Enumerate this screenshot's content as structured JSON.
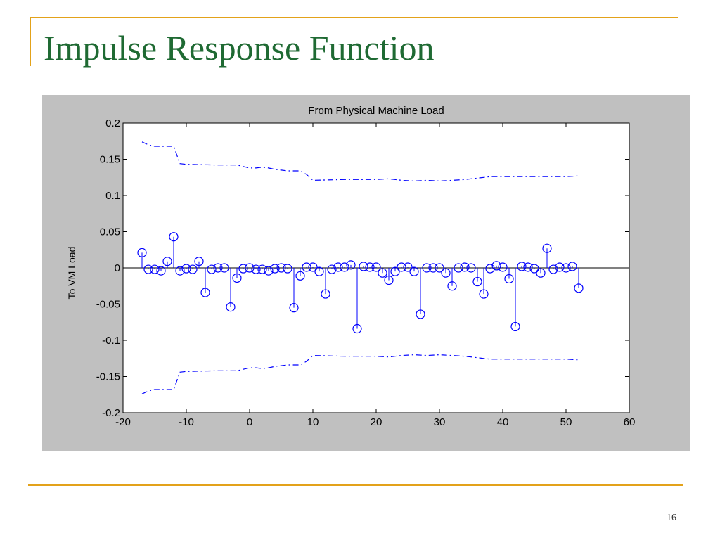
{
  "slide": {
    "title": "Impulse Response Function",
    "page_number": "16"
  },
  "colors": {
    "accent_rule": "#e3a21a",
    "title": "#1f6a33",
    "figure_background": "#c0c0c0",
    "series": "#0000ff"
  },
  "chart_data": {
    "type": "stem",
    "title": "From Physical Machine Load",
    "xlabel": "",
    "ylabel": "To VM Load",
    "xlim": [
      -20,
      60
    ],
    "ylim": [
      -0.2,
      0.2
    ],
    "xticks": [
      -20,
      -10,
      0,
      10,
      20,
      30,
      40,
      50,
      60
    ],
    "xtick_labels": [
      "-20",
      "-10",
      "0",
      "10",
      "20",
      "30",
      "40",
      "50",
      "60"
    ],
    "yticks": [
      0.2,
      0.15,
      0.1,
      0.05,
      0,
      -0.05,
      -0.1,
      -0.15,
      -0.2
    ],
    "ytick_labels": [
      "0.2",
      "0.15",
      "0.1",
      "0.05",
      "0",
      "-0.05",
      "-0.1",
      "-0.15",
      "-0.2"
    ],
    "grid": false,
    "zero_line": true,
    "stems": {
      "x": [
        -17,
        -16,
        -15,
        -14,
        -13,
        -12,
        -11,
        -10,
        -9,
        -8,
        -7,
        -6,
        -5,
        -4,
        -3,
        -2,
        -1,
        0,
        1,
        2,
        3,
        4,
        5,
        6,
        7,
        8,
        9,
        10,
        11,
        12,
        13,
        14,
        15,
        16,
        17,
        18,
        19,
        20,
        21,
        22,
        23,
        24,
        25,
        26,
        27,
        28,
        29,
        30,
        31,
        32,
        33,
        34,
        35,
        36,
        37,
        38,
        39,
        40,
        41,
        42,
        43,
        44,
        45,
        46,
        47,
        48,
        49,
        50,
        51,
        52
      ],
      "y": [
        0.021,
        -0.002,
        -0.002,
        -0.004,
        0.009,
        0.043,
        -0.004,
        -0.001,
        -0.002,
        0.009,
        -0.034,
        -0.002,
        0.0,
        0.0,
        -0.054,
        -0.014,
        -0.001,
        0.0,
        -0.002,
        -0.002,
        -0.004,
        -0.001,
        0.0,
        -0.001,
        -0.055,
        -0.011,
        0.001,
        0.001,
        -0.005,
        -0.036,
        -0.002,
        0.001,
        0.001,
        0.004,
        -0.084,
        0.002,
        0.001,
        0.001,
        -0.007,
        -0.017,
        -0.005,
        0.001,
        0.001,
        -0.005,
        -0.064,
        0.0,
        0.0,
        0.0,
        -0.007,
        -0.025,
        0.0,
        0.001,
        0.0,
        -0.019,
        -0.036,
        -0.001,
        0.003,
        0.001,
        -0.015,
        -0.081,
        0.002,
        0.001,
        -0.001,
        -0.007,
        0.027,
        -0.002,
        0.001,
        0.0,
        0.002,
        -0.028
      ]
    },
    "upper_bound": {
      "x": [
        -17,
        -16,
        -15,
        -14,
        -13,
        -12,
        -11,
        -10,
        -5,
        -2,
        -1,
        0,
        1,
        2,
        3,
        4,
        5,
        6,
        7,
        8,
        9,
        10,
        15,
        20,
        22,
        24,
        26,
        28,
        30,
        32,
        34,
        35,
        36,
        37,
        38,
        40,
        42,
        44,
        46,
        48,
        50,
        52
      ],
      "y": [
        0.174,
        0.17,
        0.168,
        0.168,
        0.168,
        0.168,
        0.144,
        0.143,
        0.142,
        0.142,
        0.14,
        0.138,
        0.138,
        0.139,
        0.138,
        0.136,
        0.135,
        0.134,
        0.134,
        0.134,
        0.129,
        0.121,
        0.122,
        0.122,
        0.123,
        0.121,
        0.12,
        0.121,
        0.12,
        0.121,
        0.122,
        0.123,
        0.124,
        0.125,
        0.126,
        0.126,
        0.126,
        0.126,
        0.126,
        0.126,
        0.126,
        0.127
      ]
    },
    "lower_bound": {
      "x": [
        -17,
        -16,
        -15,
        -14,
        -13,
        -12,
        -11,
        -10,
        -5,
        -2,
        -1,
        0,
        1,
        2,
        3,
        4,
        5,
        6,
        7,
        8,
        9,
        10,
        15,
        20,
        22,
        24,
        26,
        28,
        30,
        32,
        34,
        35,
        36,
        37,
        38,
        40,
        42,
        44,
        46,
        48,
        50,
        52
      ],
      "y": [
        -0.174,
        -0.17,
        -0.168,
        -0.168,
        -0.168,
        -0.168,
        -0.144,
        -0.143,
        -0.142,
        -0.142,
        -0.14,
        -0.138,
        -0.138,
        -0.139,
        -0.138,
        -0.136,
        -0.135,
        -0.134,
        -0.134,
        -0.134,
        -0.129,
        -0.121,
        -0.122,
        -0.122,
        -0.123,
        -0.121,
        -0.12,
        -0.121,
        -0.12,
        -0.121,
        -0.122,
        -0.123,
        -0.124,
        -0.125,
        -0.126,
        -0.126,
        -0.126,
        -0.126,
        -0.126,
        -0.126,
        -0.126,
        -0.127
      ]
    }
  }
}
